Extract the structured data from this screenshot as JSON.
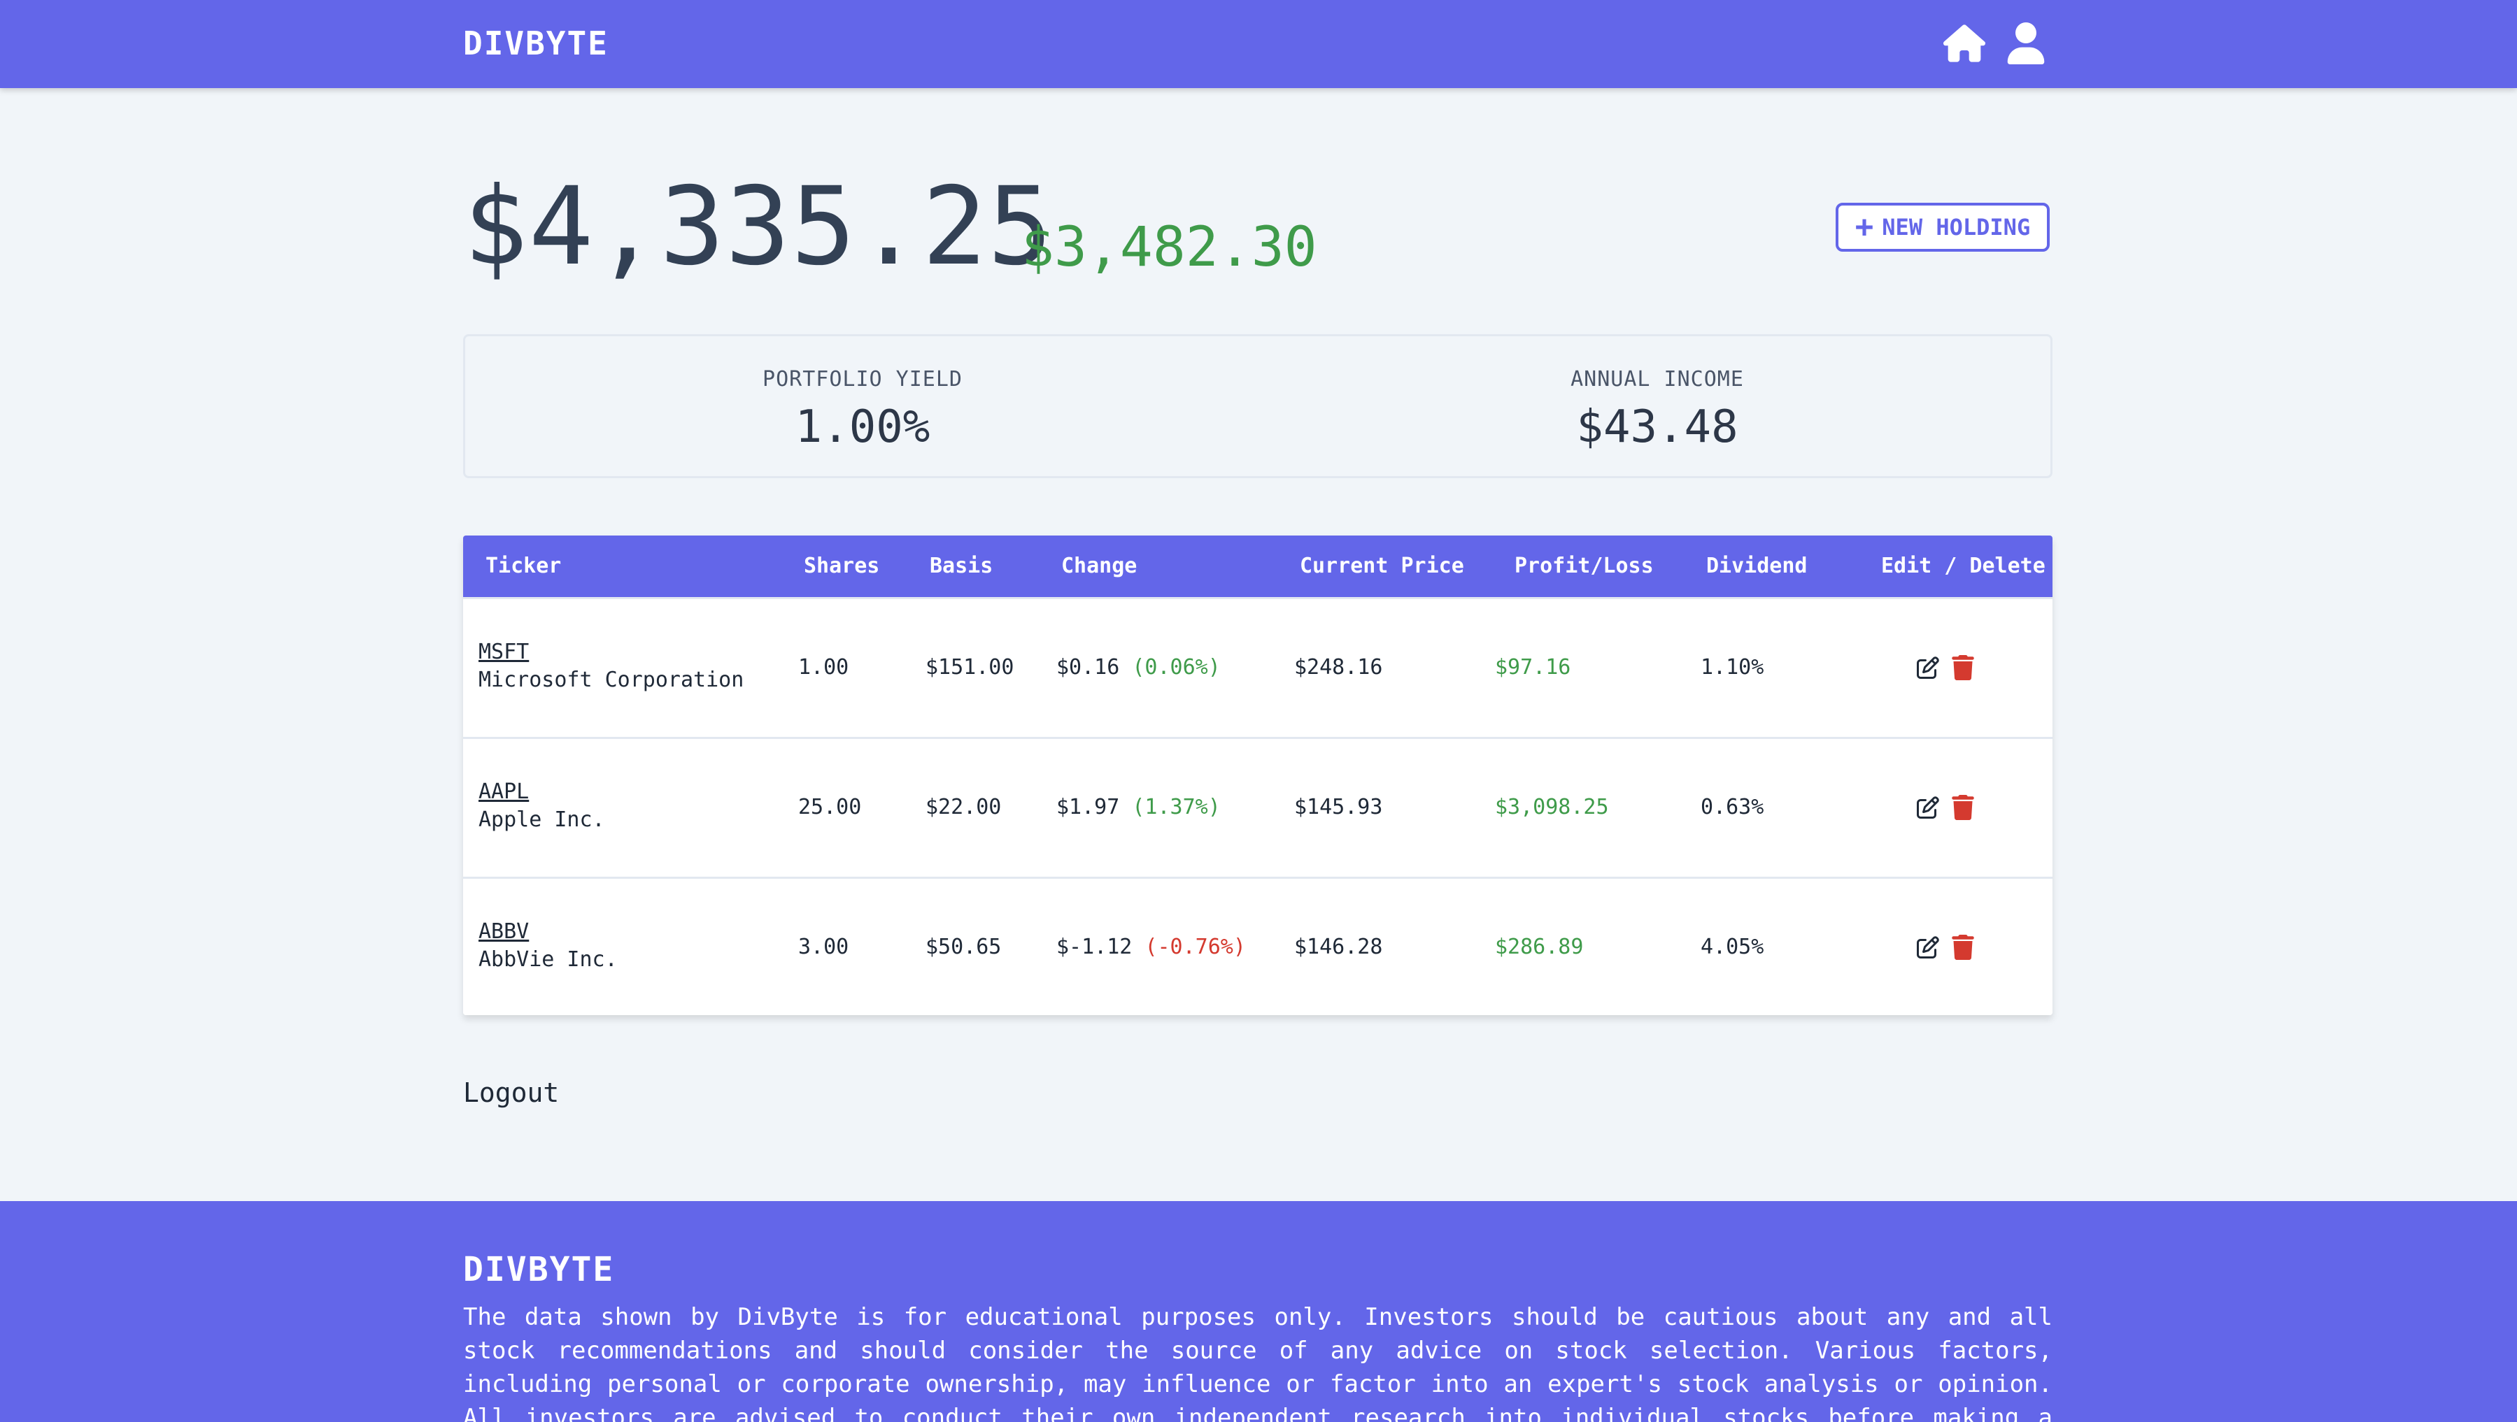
{
  "nav": {
    "brand": "DIVBYTE"
  },
  "summary": {
    "total_value": "$4,335.25",
    "gain_value": "$3,482.30",
    "new_holding_label": "NEW HOLDING"
  },
  "stats": {
    "yield_label": "PORTFOLIO YIELD",
    "yield_value": "1.00%",
    "income_label": "ANNUAL INCOME",
    "income_value": "$43.48"
  },
  "table": {
    "headers": [
      "Ticker",
      "Shares",
      "Basis",
      "Change",
      "Current Price",
      "Profit/Loss",
      "Dividend",
      "Edit / Delete"
    ],
    "rows": [
      {
        "ticker": "MSFT",
        "company": "Microsoft Corporation",
        "shares": "1.00",
        "basis": "$151.00",
        "change": "$0.16",
        "change_pct": "(0.06%)",
        "price": "$248.16",
        "profit": "$97.16",
        "dividend": "1.10%"
      },
      {
        "ticker": "AAPL",
        "company": "Apple Inc.",
        "shares": "25.00",
        "basis": "$22.00",
        "change": "$1.97",
        "change_pct": "(1.37%)",
        "price": "$145.93",
        "profit": "$3,098.25",
        "dividend": "0.63%"
      },
      {
        "ticker": "ABBV",
        "company": "AbbVie Inc.",
        "shares": "3.00",
        "basis": "$50.65",
        "change": "$-1.12",
        "change_pct": "(-0.76%)",
        "price": "$146.28",
        "profit": "$286.89",
        "dividend": "4.05%"
      }
    ]
  },
  "logout_label": "Logout",
  "footer": {
    "brand": "DIVBYTE",
    "disclaimer": "The data shown by DivByte is for educational purposes only. Investors should be cautious about any and all stock recommendations and should consider the source of any advice on stock selection. Various factors, including personal or corporate ownership, may influence or factor into an expert's stock analysis or opinion. All investors are advised to conduct their own independent research into individual stocks before making a purchase decision. In addition,"
  },
  "colors": {
    "accent": "#6366e9",
    "positive": "#3f9b4a",
    "negative": "#d43a2f",
    "background": "#f1f5f9"
  },
  "icons": {
    "home": "home-icon",
    "user": "user-icon",
    "plus": "plus-icon",
    "edit": "edit-icon",
    "delete": "trash-icon"
  }
}
